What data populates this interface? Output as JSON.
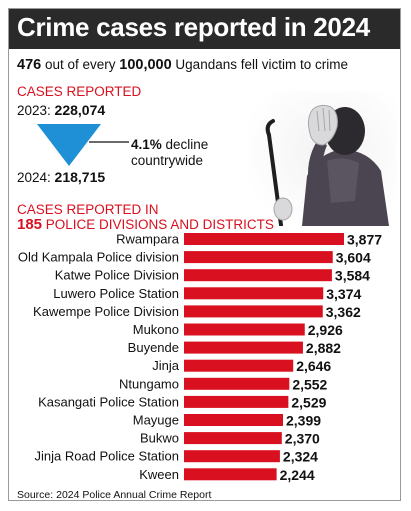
{
  "header": {
    "title": "Crime cases reported in 2024",
    "subtitle_n1": "476",
    "subtitle_t1": " out of every ",
    "subtitle_n2": "100,000",
    "subtitle_t2": " Ugandans fell victim to crime"
  },
  "summary": {
    "cases_label": "CASES REPORTED",
    "y2023_label": "2023: ",
    "y2023_value": "228,074",
    "y2024_label": "2024: ",
    "y2024_value": "218,715",
    "decline_pct": "4.1%",
    "decline_t1": " decline",
    "decline_t2": "countrywide"
  },
  "divisions": {
    "label_line1": "CASES REPORTED IN",
    "label_num": "185",
    "label_rest": " POLICE DIVISIONS AND DISTRICTS"
  },
  "source": "Source: 2024 Police Annual Crime Report",
  "colors": {
    "bar": "#d8101f",
    "accent_red": "#d8101f",
    "triangle": "#1f8fd6",
    "title_bg": "#2a2a2a"
  },
  "chart_data": {
    "type": "bar",
    "orientation": "horizontal",
    "categories": [
      "Rwampara",
      "Old Kampala Police division",
      "Katwe Police Division",
      "Luwero Police Station",
      "Kawempe Police Division",
      "Mukono",
      "Buyende",
      "Jinja",
      "Ntungamo",
      "Kasangati Police Station",
      "Mayuge",
      "Bukwo",
      "Jinja Road Police Station",
      "Kween"
    ],
    "values": [
      3877,
      3604,
      3584,
      3374,
      3362,
      2926,
      2882,
      2646,
      2552,
      2529,
      2399,
      2370,
      2324,
      2244
    ],
    "value_labels": [
      "3,877",
      "3,604",
      "3,584",
      "3,374",
      "3,362",
      "2,926",
      "2,882",
      "2,646",
      "2,552",
      "2,529",
      "2,399",
      "2,370",
      "2,324",
      "2,244"
    ],
    "title": "",
    "xlabel": "",
    "ylabel": "",
    "grid": false,
    "legend": "none"
  }
}
